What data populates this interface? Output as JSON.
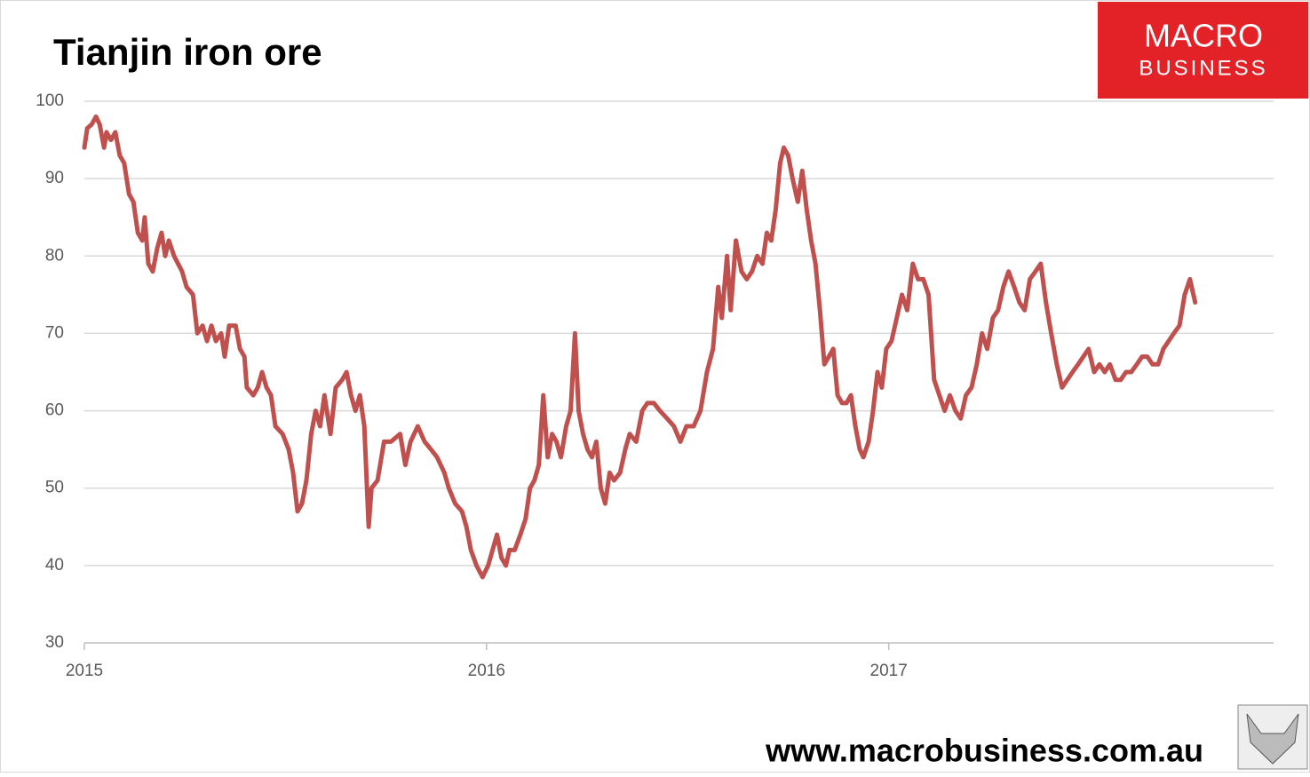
{
  "chart_data": {
    "type": "line",
    "title": "Tianjin iron ore",
    "brand_top": "MACRO",
    "brand_bottom": "BUSINESS",
    "footer": "www.macrobusiness.com.au",
    "color": "#c0504d",
    "xlim": [
      2015,
      2017.957
    ],
    "xticks": [
      2015,
      2016,
      2017
    ],
    "ylim": [
      30,
      100
    ],
    "yticks": [
      30,
      40,
      50,
      60,
      70,
      80,
      90,
      100
    ],
    "grid": true,
    "x": [
      2015.0,
      2015.007,
      2015.018,
      2015.029,
      2015.038,
      2015.049,
      2015.055,
      2015.066,
      2015.077,
      2015.088,
      2015.099,
      2015.111,
      2015.122,
      2015.133,
      2015.144,
      2015.15,
      2015.159,
      2015.17,
      2015.181,
      2015.192,
      2015.201,
      2015.21,
      2015.223,
      2015.243,
      2015.254,
      2015.27,
      2015.281,
      2015.294,
      2015.305,
      2015.316,
      2015.327,
      2015.34,
      2015.349,
      2015.36,
      2015.376,
      2015.387,
      2015.398,
      2015.404,
      2015.42,
      2015.431,
      2015.442,
      2015.453,
      2015.464,
      2015.475,
      2015.493,
      2015.508,
      2015.519,
      2015.53,
      2015.541,
      2015.552,
      2015.564,
      2015.575,
      2015.586,
      2015.597,
      2015.612,
      2015.625,
      2015.641,
      2015.652,
      2015.663,
      2015.674,
      2015.685,
      2015.696,
      2015.707,
      2015.714,
      2015.729,
      2015.745,
      2015.762,
      2015.785,
      2015.798,
      2015.811,
      2015.829,
      2015.846,
      2015.862,
      2015.877,
      2015.895,
      2015.906,
      2015.922,
      2015.939,
      2015.95,
      2015.961,
      2015.975,
      2015.99,
      2016.004,
      2016.015,
      2016.026,
      2016.037,
      2016.048,
      2016.057,
      2016.07,
      2016.084,
      2016.097,
      2016.108,
      2016.119,
      2016.13,
      2016.141,
      2016.152,
      2016.163,
      2016.174,
      2016.185,
      2016.198,
      2016.209,
      2016.22,
      2016.229,
      2016.24,
      2016.251,
      2016.262,
      2016.273,
      2016.284,
      2016.295,
      2016.306,
      2016.317,
      2016.332,
      2016.345,
      2016.356,
      2016.372,
      2016.387,
      2016.4,
      2016.416,
      2016.431,
      2016.449,
      2016.466,
      2016.482,
      2016.497,
      2016.515,
      2016.532,
      2016.548,
      2016.563,
      2016.576,
      2016.585,
      2016.598,
      2016.607,
      2016.62,
      2016.634,
      2016.647,
      2016.66,
      2016.673,
      2016.686,
      2016.697,
      2016.708,
      2016.719,
      2016.73,
      2016.739,
      2016.75,
      2016.761,
      2016.774,
      2016.785,
      2016.796,
      2016.807,
      2016.818,
      2016.829,
      2016.84,
      2016.851,
      2016.862,
      2016.873,
      2016.884,
      2016.895,
      2016.906,
      2016.917,
      2016.928,
      2016.937,
      2016.95,
      2016.961,
      2016.972,
      2016.983,
      2016.994,
      2017.007,
      2017.02,
      2017.033,
      2017.046,
      2017.06,
      2017.073,
      2017.086,
      2017.099,
      2017.113,
      2017.126,
      2017.139,
      2017.152,
      2017.166,
      2017.179,
      2017.192,
      2017.206,
      2017.219,
      2017.232,
      2017.245,
      2017.259,
      2017.272,
      2017.285,
      2017.298,
      2017.312,
      2017.325,
      2017.338,
      2017.351,
      2017.365,
      2017.378,
      2017.391,
      2017.404,
      2017.418,
      2017.431,
      2017.444,
      2017.457,
      2017.471,
      2017.484,
      2017.497,
      2017.511,
      2017.524,
      2017.537,
      2017.55,
      2017.564,
      2017.577,
      2017.59,
      2017.603,
      2017.617,
      2017.63,
      2017.643,
      2017.656,
      2017.67,
      2017.683,
      2017.696,
      2017.709,
      2017.723,
      2017.736,
      2017.749,
      2017.762
    ],
    "values": [
      94,
      96.5,
      97,
      98,
      97,
      94,
      96,
      95,
      96,
      93,
      92,
      88,
      87,
      83,
      82,
      85,
      79,
      78,
      81,
      83,
      80,
      82,
      80,
      78,
      76,
      75,
      70,
      71,
      69,
      71,
      69,
      70,
      67,
      71,
      71,
      68,
      67,
      63,
      62,
      63,
      65,
      63,
      62,
      58,
      57,
      55,
      52,
      47,
      48,
      51,
      57,
      60,
      58,
      62,
      57,
      63,
      64,
      65,
      62,
      60,
      62,
      58,
      45,
      50,
      51,
      56,
      56,
      57,
      53,
      56,
      58,
      56,
      55,
      54,
      52,
      50,
      48,
      47,
      45,
      42,
      40,
      38.5,
      40,
      42,
      44,
      41,
      40,
      42,
      42,
      44,
      46,
      50,
      51,
      53,
      62,
      54,
      57,
      56,
      54,
      58,
      60,
      70,
      60,
      57,
      55,
      54,
      56,
      50,
      48,
      52,
      51,
      52,
      55,
      57,
      56,
      60,
      61,
      61,
      60,
      59,
      58,
      56,
      58,
      58,
      60,
      65,
      68,
      76,
      72,
      80,
      73,
      82,
      78,
      77,
      78,
      80,
      79,
      83,
      82,
      86,
      92,
      94,
      93,
      90,
      87,
      91,
      86,
      82,
      79,
      73,
      66,
      67,
      68,
      62,
      61,
      61,
      62,
      58,
      55,
      54,
      56,
      60,
      65,
      63,
      68,
      69,
      72,
      75,
      73,
      79,
      77,
      77,
      75,
      64,
      62,
      60,
      62,
      60,
      59,
      62,
      63,
      66,
      70,
      68,
      72,
      73,
      76,
      78,
      76,
      74,
      73,
      77,
      78,
      79,
      74,
      70,
      66,
      63,
      64,
      65,
      66,
      67,
      68,
      65,
      66,
      65,
      66,
      64,
      64,
      65,
      65,
      66,
      67,
      67,
      66,
      66,
      68,
      69,
      70,
      71,
      75,
      77,
      74
    ]
  }
}
